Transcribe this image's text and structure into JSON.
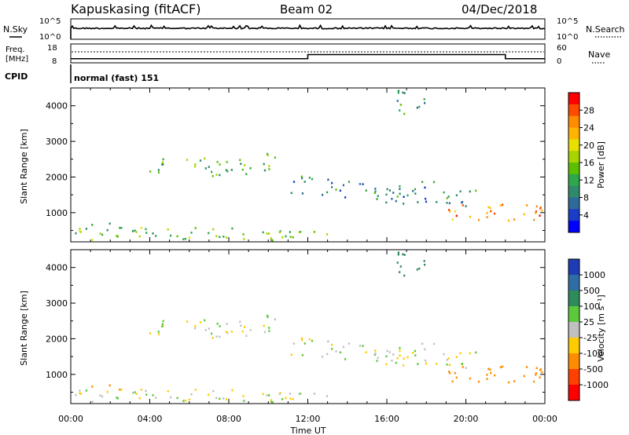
{
  "header": {
    "station": "Kapuskasing (fitACF)",
    "beam": "Beam 02",
    "date": "04/Dec/2018"
  },
  "panels": {
    "noise": {
      "left_label": "N.Sky",
      "left_ticks": [
        "10^5",
        "10^0"
      ],
      "right_ticks": [
        "10^5",
        "10^0"
      ],
      "right_label": "N.Search"
    },
    "freq": {
      "left_label_1": "Freq.",
      "left_label_2": "[MHz]",
      "left_ticks": [
        "18",
        "8"
      ],
      "right_ticks": [
        "60",
        "0"
      ],
      "right_label": "Nave"
    },
    "cpid": {
      "label": "CPID",
      "text": "normal (fast) 151"
    }
  },
  "power_scale": {
    "label": "Power [dB]",
    "ticks": [
      "28",
      "24",
      "20",
      "16",
      "12",
      "8",
      "4"
    ],
    "colors": [
      "#ff0000",
      "#ff4a00",
      "#ff8c00",
      "#ffb400",
      "#e8e000",
      "#a8d400",
      "#5cc000",
      "#2ea84a",
      "#2e8a6a",
      "#2e6a9a",
      "#1a3cc8",
      "#0000ff"
    ]
  },
  "velocity_scale": {
    "label": "Velocity [m s⁻¹]",
    "ticks": [
      "1000",
      "500",
      "100",
      "25",
      "-25",
      "-100",
      "-500",
      "-1000"
    ],
    "colors": [
      "#1e3cb4",
      "#2e6ea4",
      "#2e8c5a",
      "#5cc83c",
      "#c0c0c0",
      "#ffcc00",
      "#ff8c00",
      "#ff4000",
      "#ff0000"
    ]
  },
  "axes": {
    "ylabel": "Slant Range [km]",
    "y_ticks": [
      "4000",
      "3000",
      "2000",
      "1000"
    ],
    "xlabel": "Time UT",
    "x_ticks": [
      "00:00",
      "04:00",
      "08:00",
      "12:00",
      "16:00",
      "20:00",
      "00:00"
    ]
  },
  "chart_data": {
    "type": "heatmap",
    "x_range_hours": [
      0,
      24
    ],
    "y_range_km": [
      180,
      4500
    ],
    "frequency_mhz": [
      {
        "from_hour": 0,
        "to_hour": 12,
        "value": 10.5
      },
      {
        "from_hour": 12,
        "to_hour": 22,
        "value": 13.0
      },
      {
        "from_hour": 22,
        "to_hour": 24,
        "value": 10.5
      }
    ],
    "scatter_regions": [
      {
        "t0": 3.9,
        "t1": 10.5,
        "r0": 2100,
        "r1": 2600,
        "power_db": 12,
        "velocity": 0
      },
      {
        "t0": 1.0,
        "t1": 2.6,
        "r0": 580,
        "r1": 760,
        "power_db": 12,
        "velocity": -200
      },
      {
        "t0": 11.0,
        "t1": 20.5,
        "r0": 1500,
        "r1": 2100,
        "power_db": 8,
        "velocity": 0
      },
      {
        "t0": 16.5,
        "t1": 18.0,
        "r0": 3800,
        "r1": 4500,
        "power_db": 10,
        "velocity": 300
      },
      {
        "t0": 19.0,
        "t1": 24.0,
        "r0": 800,
        "r1": 1300,
        "power_db": 24,
        "velocity": -300
      },
      {
        "t0": 0.0,
        "t1": 13.0,
        "r0": 180,
        "r1": 600,
        "power_db": 14,
        "velocity": 60
      }
    ]
  }
}
